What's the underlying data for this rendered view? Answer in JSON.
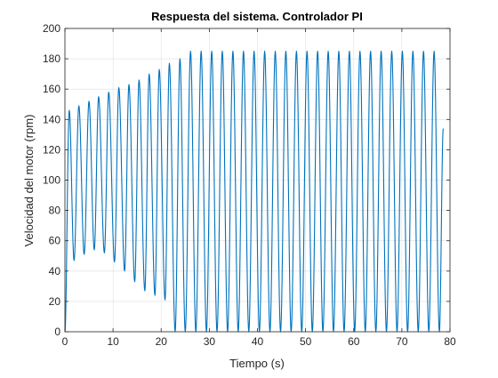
{
  "chart_data": {
    "type": "line",
    "title": "Respuesta del sistema. Controlador PI",
    "xlabel": "Tiempo (s)",
    "ylabel": "Velocidad del motor (rpm)",
    "xlim": [
      0,
      80
    ],
    "ylim": [
      0,
      200
    ],
    "xticks": [
      "0",
      "10",
      "20",
      "30",
      "40",
      "50",
      "60",
      "70",
      "80"
    ],
    "yticks": [
      "0",
      "20",
      "40",
      "60",
      "80",
      "100",
      "120",
      "140",
      "160",
      "180",
      "200"
    ],
    "grid": true,
    "line_color": "#0072BD",
    "series": [
      {
        "peaks": [
          [
            0.9,
            146
          ],
          [
            2.9,
            149
          ],
          [
            5.0,
            152
          ],
          [
            7.0,
            155
          ],
          [
            9.1,
            158
          ],
          [
            11.2,
            161
          ],
          [
            13.3,
            163
          ],
          [
            15.4,
            166
          ],
          [
            17.5,
            170
          ],
          [
            19.6,
            173
          ],
          [
            21.7,
            177
          ],
          [
            23.9,
            180
          ],
          [
            26.1,
            185
          ],
          [
            28.3,
            185
          ],
          [
            30.5,
            185
          ],
          [
            32.7,
            185
          ],
          [
            34.9,
            185
          ],
          [
            37.1,
            185
          ],
          [
            39.3,
            185
          ],
          [
            41.5,
            185
          ],
          [
            43.7,
            185
          ],
          [
            45.9,
            185
          ],
          [
            48.1,
            185
          ],
          [
            50.3,
            185
          ],
          [
            52.5,
            185
          ],
          [
            54.7,
            185
          ],
          [
            56.9,
            185
          ],
          [
            59.1,
            185
          ],
          [
            61.3,
            185
          ],
          [
            63.5,
            185
          ],
          [
            65.7,
            185
          ],
          [
            67.9,
            185
          ],
          [
            70.1,
            185
          ],
          [
            72.3,
            185
          ],
          [
            74.5,
            185
          ],
          [
            76.7,
            185
          ]
        ],
        "troughs": [
          [
            1.9,
            47
          ],
          [
            4.0,
            51
          ],
          [
            6.1,
            54
          ],
          [
            8.2,
            52
          ],
          [
            10.3,
            46
          ],
          [
            12.4,
            40
          ],
          [
            14.5,
            33
          ],
          [
            16.6,
            27
          ],
          [
            18.7,
            24
          ],
          [
            20.8,
            21
          ],
          [
            22.9,
            0
          ],
          [
            25.0,
            0
          ],
          [
            27.2,
            0
          ],
          [
            29.4,
            0
          ],
          [
            31.6,
            0
          ],
          [
            33.8,
            0
          ],
          [
            36.0,
            0
          ],
          [
            38.2,
            0
          ],
          [
            40.4,
            0
          ],
          [
            42.6,
            0
          ],
          [
            44.8,
            0
          ],
          [
            47.0,
            0
          ],
          [
            49.2,
            0
          ],
          [
            51.4,
            0
          ],
          [
            53.6,
            0
          ],
          [
            55.8,
            0
          ],
          [
            58.0,
            0
          ],
          [
            60.2,
            0
          ],
          [
            62.4,
            0
          ],
          [
            64.6,
            0
          ],
          [
            66.8,
            0
          ],
          [
            69.0,
            0
          ],
          [
            71.2,
            0
          ],
          [
            73.4,
            0
          ],
          [
            75.6,
            0
          ],
          [
            77.8,
            0
          ]
        ],
        "start": [
          0,
          0
        ],
        "end": [
          78.6,
          134
        ]
      }
    ]
  }
}
